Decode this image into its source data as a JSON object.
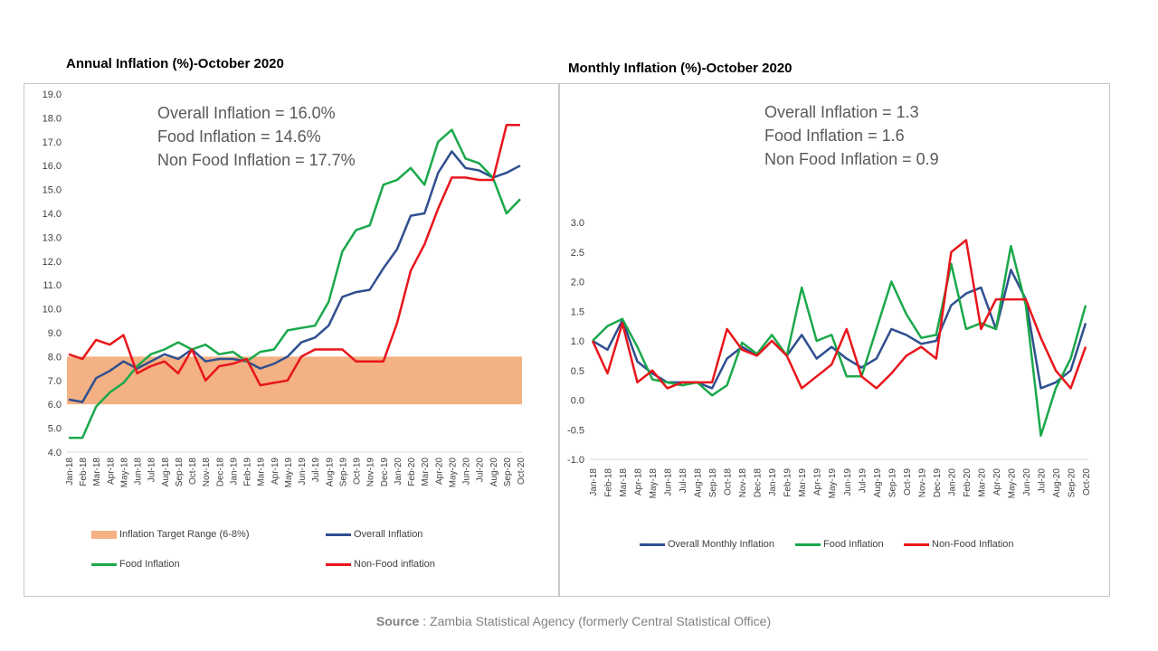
{
  "source": {
    "label": "Source",
    "separator": " : ",
    "text": "Zambia Statistical Agency (formerly Central Statistical Office)"
  },
  "colors": {
    "overall": "#2F4F8F",
    "food": "#1AA84A",
    "nonfood": "#E8151B",
    "target": "#F4B183",
    "axis": "#D9D9D9",
    "tick_text": "#404040"
  },
  "chart_data": [
    {
      "id": "annual",
      "type": "line",
      "title": "Annual Inflation (%)-October 2020",
      "summary": [
        "Overall Inflation = 16.0%",
        "Food Inflation = 14.6%",
        "Non Food Inflation = 17.7%"
      ],
      "categories": [
        "Jan-18",
        "Feb-18",
        "Mar-18",
        "Apr-18",
        "May-18",
        "Jun-18",
        "Jul-18",
        "Aug-18",
        "Sep-18",
        "Oct-18",
        "Nov-18",
        "Dec-18",
        "Jan-19",
        "Feb-19",
        "Mar-19",
        "Apr-19",
        "May-19",
        "Jun-19",
        "Jul-19",
        "Aug-19",
        "Sep-19",
        "Oct-19",
        "Nov-19",
        "Dec-19",
        "Jan-20",
        "Feb-20",
        "Mar-20",
        "Apr-20",
        "May-20",
        "Jun-20",
        "Jul-20",
        "Aug-20",
        "Sep-20",
        "Oct-20"
      ],
      "x_tick_labels": [
        "Jan-18",
        "Feb-18",
        "Mar-18",
        "Apr-18",
        "May-18",
        "Jun-18",
        "Jul-18",
        "Aug-18",
        "Sep-18",
        "Oct-18",
        "Nov-18",
        "Dec-18",
        "Jan-19",
        "Feb-19",
        "Mar-19",
        "Apr-19",
        "May-19",
        "Jun-19",
        "Jul-19",
        "Aug-19",
        "Sep-19",
        "Oct-19",
        "Nov-19",
        "Dec-19",
        "Jan-20",
        "Feb-20",
        "Mar-20",
        "Apr-20",
        "May-20",
        "Jun-20",
        "Jul-20",
        "Aug-20",
        "Sep-20",
        "Oct-20"
      ],
      "ylim": [
        4.0,
        19.0
      ],
      "yticks": [
        "4.0",
        "5.0",
        "6.0",
        "7.0",
        "8.0",
        "9.0",
        "10.0",
        "11.0",
        "12.0",
        "13.0",
        "14.0",
        "15.0",
        "16.0",
        "17.0",
        "18.0",
        "19.0"
      ],
      "target_band": {
        "name": "Inflation Target Range (6-8%)",
        "low": 6.0,
        "high": 8.0
      },
      "series": [
        {
          "key": "overall",
          "name": "Overall Inflation",
          "values": [
            6.2,
            6.1,
            7.1,
            7.4,
            7.8,
            7.5,
            7.8,
            8.1,
            7.9,
            8.3,
            7.8,
            7.9,
            7.9,
            7.8,
            7.5,
            7.7,
            8.0,
            8.6,
            8.8,
            9.3,
            10.5,
            10.7,
            10.8,
            11.7,
            12.5,
            13.9,
            14.0,
            15.7,
            16.6,
            15.9,
            15.8,
            15.5,
            15.7,
            16.0
          ]
        },
        {
          "key": "food",
          "name": "Food Inflation",
          "values": [
            4.6,
            4.6,
            5.9,
            6.5,
            6.9,
            7.6,
            8.1,
            8.3,
            8.6,
            8.3,
            8.5,
            8.1,
            8.2,
            7.8,
            8.2,
            8.3,
            9.1,
            9.2,
            9.3,
            10.3,
            12.4,
            13.3,
            13.5,
            15.2,
            15.4,
            15.9,
            15.2,
            17.0,
            17.5,
            16.3,
            16.1,
            15.5,
            14.0,
            14.6
          ]
        },
        {
          "key": "nonfood",
          "name": "Non-Food inflation",
          "values": [
            8.1,
            7.9,
            8.7,
            8.5,
            8.9,
            7.3,
            7.6,
            7.8,
            7.3,
            8.3,
            7.0,
            7.6,
            7.7,
            7.9,
            6.8,
            6.9,
            7.0,
            8.0,
            8.3,
            8.3,
            8.3,
            7.8,
            7.8,
            7.8,
            9.4,
            11.6,
            12.7,
            14.2,
            15.5,
            15.5,
            15.4,
            15.4,
            17.7,
            17.7
          ]
        }
      ],
      "legend": [
        {
          "key": "target",
          "label": "Inflation Target Range (6-8%)"
        },
        {
          "key": "overall",
          "label": "Overall Inflation"
        },
        {
          "key": "food",
          "label": "Food Inflation"
        },
        {
          "key": "nonfood",
          "label": "Non-Food inflation"
        }
      ]
    },
    {
      "id": "monthly",
      "type": "line",
      "title": "Monthly Inflation (%)-October 2020",
      "summary": [
        "Overall Inflation = 1.3",
        "Food Inflation = 1.6",
        "Non Food Inflation = 0.9"
      ],
      "categories": [
        "Jan-18",
        "Feb-18",
        "Mar-18",
        "Apr-18",
        "May-18",
        "Jun-18",
        "Jul-18",
        "Aug-18",
        "Sep-18",
        "Oct-18",
        "Nov-18",
        "Dec-18",
        "Jan-19",
        "Feb-19",
        "Mar-19",
        "Apr-19",
        "May-19",
        "Jun-19",
        "Jul-19",
        "Aug-19",
        "Sep-19",
        "Oct-19",
        "Nov-19",
        "Dec-19",
        "Jan-20",
        "Feb-20",
        "Mar-20",
        "Apr-20",
        "May-20",
        "Jun-20",
        "Jul-20",
        "Aug-20",
        "Sep-20",
        "Oct-20"
      ],
      "x_tick_labels": [
        "Jan-18",
        "Feb-18",
        "Mar-18",
        "Apr-18",
        "May-18",
        "Jun-18",
        "Jul-18",
        "Aug-18",
        "Sep-18",
        "Oct-18",
        "Nov-18",
        "Dec-18",
        "Jan-19",
        "Feb-19",
        "Mar-19",
        "Apr-19",
        "May-19",
        "Jun-19",
        "Jul-19",
        "Aug-19",
        "Sep-19",
        "Oct-19",
        "Nov-19",
        "Dec-19",
        "Jan-20",
        "Feb-20",
        "Mar-20",
        "Apr-20",
        "May-20",
        "Jun-20",
        "Jul-20",
        "Aug-20",
        "Sep-20",
        "Oct-20"
      ],
      "ylim": [
        -1.0,
        3.0
      ],
      "yticks": [
        "-1.0",
        "-0.5",
        "0.0",
        "0.5",
        "1.0",
        "1.5",
        "2.0",
        "2.5",
        "3.0"
      ],
      "series": [
        {
          "key": "overall",
          "name": "Overall Monthly Inflation",
          "values": [
            1.0,
            0.85,
            1.35,
            0.65,
            0.45,
            0.3,
            0.3,
            0.3,
            0.2,
            0.7,
            0.9,
            0.75,
            1.0,
            0.75,
            1.1,
            0.7,
            0.9,
            0.7,
            0.55,
            0.7,
            1.2,
            1.1,
            0.95,
            1.0,
            1.6,
            1.8,
            1.9,
            1.2,
            2.2,
            1.7,
            0.2,
            0.3,
            0.5,
            1.3
          ]
        },
        {
          "key": "food",
          "name": "Food Inflation",
          "values": [
            1.0,
            1.25,
            1.37,
            0.9,
            0.35,
            0.3,
            0.25,
            0.3,
            0.08,
            0.25,
            0.97,
            0.78,
            1.1,
            0.75,
            1.9,
            1.0,
            1.1,
            0.4,
            0.4,
            1.2,
            2.0,
            1.45,
            1.05,
            1.1,
            2.3,
            1.2,
            1.3,
            1.2,
            2.6,
            1.6,
            -0.6,
            0.2,
            0.7,
            1.6
          ]
        },
        {
          "key": "nonfood",
          "name": "Non-Food Inflation",
          "values": [
            1.0,
            0.45,
            1.3,
            0.3,
            0.5,
            0.2,
            0.3,
            0.3,
            0.3,
            1.2,
            0.85,
            0.75,
            1.0,
            0.75,
            0.2,
            0.4,
            0.6,
            1.2,
            0.4,
            0.2,
            0.45,
            0.75,
            0.9,
            0.7,
            2.5,
            2.7,
            1.2,
            1.7,
            1.7,
            1.7,
            1.05,
            0.5,
            0.2,
            0.9
          ]
        }
      ],
      "legend": [
        {
          "key": "overall",
          "label": "Overall Monthly Inflation"
        },
        {
          "key": "food",
          "label": "Food Inflation"
        },
        {
          "key": "nonfood",
          "label": "Non-Food Inflation"
        }
      ]
    }
  ]
}
